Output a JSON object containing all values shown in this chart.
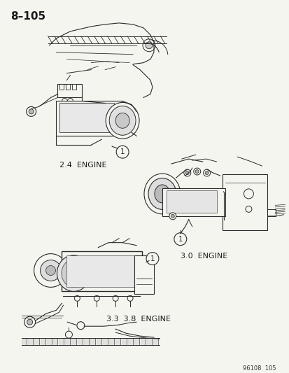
{
  "page_number": "8-105",
  "footer": "96108  105",
  "background_color": "#f5f5f0",
  "text_color": "#1a1a1a",
  "line_color": "#2a2a2a",
  "label_2_4": "2.4  ENGINE",
  "label_3_0": "3.0  ENGINE",
  "label_3_3_3_8": "3.3  3.8  ENGINE",
  "figsize": [
    4.14,
    5.33
  ],
  "dpi": 100,
  "title": "8–105"
}
